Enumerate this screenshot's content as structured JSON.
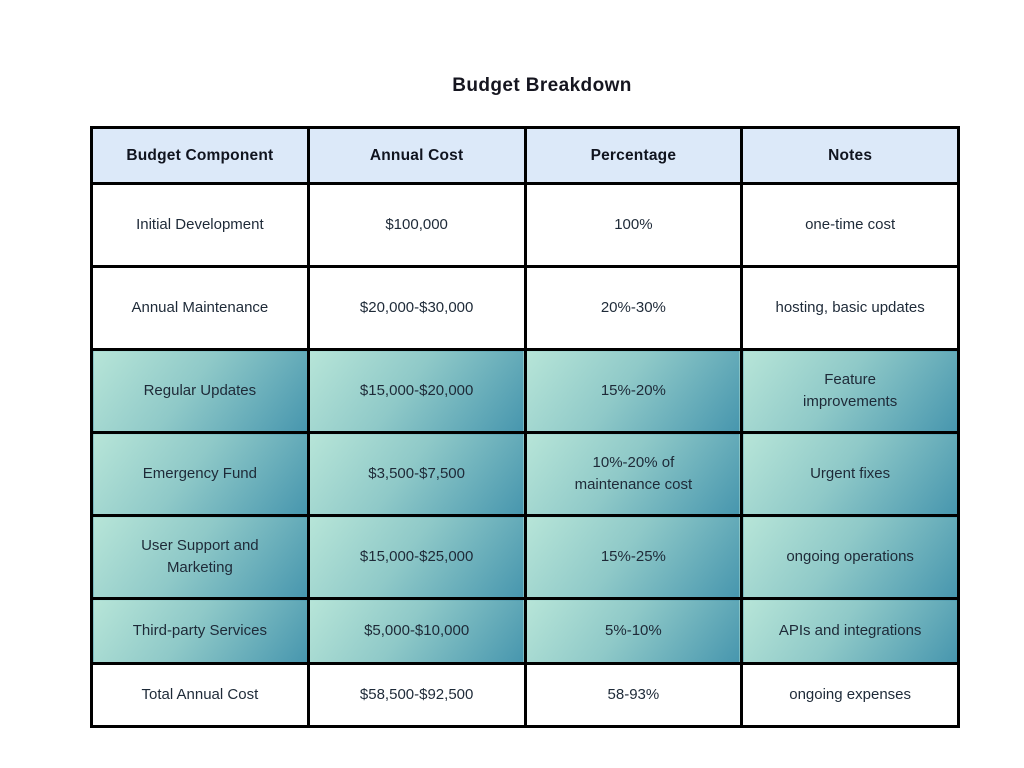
{
  "title": "Budget Breakdown",
  "chart_data": {
    "type": "table",
    "title": "Budget Breakdown",
    "columns": [
      "Budget Component",
      "Annual Cost",
      "Percentage",
      "Notes"
    ],
    "rows": [
      {
        "component": "Initial Development",
        "annual_cost": "$100,000",
        "percentage": "100%",
        "notes": "one-time cost",
        "highlighted": false
      },
      {
        "component": "Annual Maintenance",
        "annual_cost": "$20,000-$30,000",
        "percentage": "20%-30%",
        "notes": "hosting, basic updates",
        "highlighted": false
      },
      {
        "component": "Regular Updates",
        "annual_cost": "$15,000-$20,000",
        "percentage": "15%-20%",
        "notes": "Feature improvements",
        "highlighted": true
      },
      {
        "component": "Emergency Fund",
        "annual_cost": "$3,500-$7,500",
        "percentage": "10%-20% of maintenance cost",
        "notes": "Urgent fixes",
        "highlighted": true
      },
      {
        "component": "User Support and Marketing",
        "annual_cost": "$15,000-$25,000",
        "percentage": "15%-25%",
        "notes": "ongoing operations",
        "highlighted": true
      },
      {
        "component": "Third-party Services",
        "annual_cost": "$5,000-$10,000",
        "percentage": "5%-10%",
        "notes": "APIs and integrations",
        "highlighted": true
      },
      {
        "component": "Total Annual Cost",
        "annual_cost": "$58,500-$92,500",
        "percentage": "58-93%",
        "notes": "ongoing expenses",
        "highlighted": false
      }
    ],
    "layout": {
      "grid": "full-borders",
      "header_position": "top",
      "highlighted_row_style": "teal diagonal gradient"
    },
    "colors": {
      "header_bg": "#dce9f9",
      "highlight_gradient_start": "#b7e5d8",
      "highlight_gradient_mid": "#8fc9c8",
      "highlight_gradient_end": "#4796ae",
      "border": "#000000",
      "text": "#1e2a38",
      "title": "#15151f",
      "row_bg": "#ffffff"
    }
  }
}
